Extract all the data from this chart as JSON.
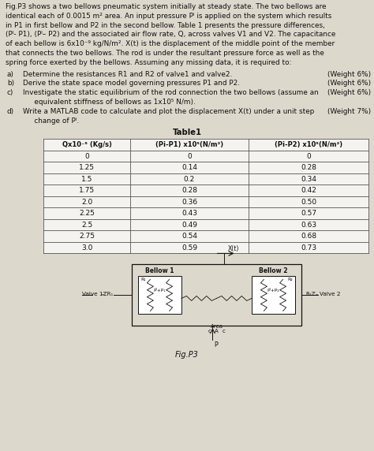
{
  "para_lines": [
    "Fig.P3 shows a two bellows pneumatic system initially at steady state. The two bellows are",
    "identical each of 0.0015 m² area. An input pressure Pᴵ is applied on the system which results",
    "in P1 in first bellow and P2 in the second bellow. Table 1 presents the pressure differences,",
    "(Pᴵ- P1), (Pᴵ– P2) and the associated air flow rate, Q, across valves V1 and V2. The capacitance",
    "of each bellow is 6x10⁻⁹ kg/N/m². X(t) is the displacement of the middle point of the member",
    "that connects the two bellows. The rod is under the resultant pressure force as well as the",
    "spring force exerted by the bellows. Assuming any missing data, it is required to:"
  ],
  "items": [
    [
      "a)",
      "Determine the resistances R1 and R2 of valve1 and valve2.",
      "(Weight 6%)",
      false,
      ""
    ],
    [
      "b)",
      "Derive the state space model governing pressures P1 and P2.",
      "(Weight 6%)",
      false,
      ""
    ],
    [
      "c)",
      "Investigate the static equilibrium of the rod connection the two bellows (assume an",
      "(Weight 6%)",
      true,
      "     equivalent stiffness of bellows as 1x10⁵ N/m)."
    ],
    [
      "d)",
      "Write a MATLAB code to calculate and plot the displacement X(t) under a unit step",
      "(Weight 7%)",
      true,
      "     change of Pᴵ."
    ]
  ],
  "table_title": "Table1",
  "table_headers": [
    "Qx10⁻⁵ (Kg/s)",
    "(Pi-P1) x10⁵(N/m²)",
    "(Pi-P2) x10⁵(N/m²)"
  ],
  "table_data": [
    [
      "0",
      "0",
      "0"
    ],
    [
      "1.25",
      "0.14",
      "0.28"
    ],
    [
      "1.5",
      "0.2",
      "0.34"
    ],
    [
      "1.75",
      "0.28",
      "0.42"
    ],
    [
      "2.0",
      "0.36",
      "0.50"
    ],
    [
      "2.25",
      "0.43",
      "0.57"
    ],
    [
      "2.5",
      "0.49",
      "0.63"
    ],
    [
      "2.75",
      "0.54",
      "0.68"
    ],
    [
      "3.0",
      "0.59",
      "0.73"
    ]
  ],
  "fig_caption": "Fig.P3",
  "bg_color": "#ddd8cc",
  "text_color": "#111111",
  "table_line_color": "#555555",
  "table_bg": "#f5f3ef"
}
